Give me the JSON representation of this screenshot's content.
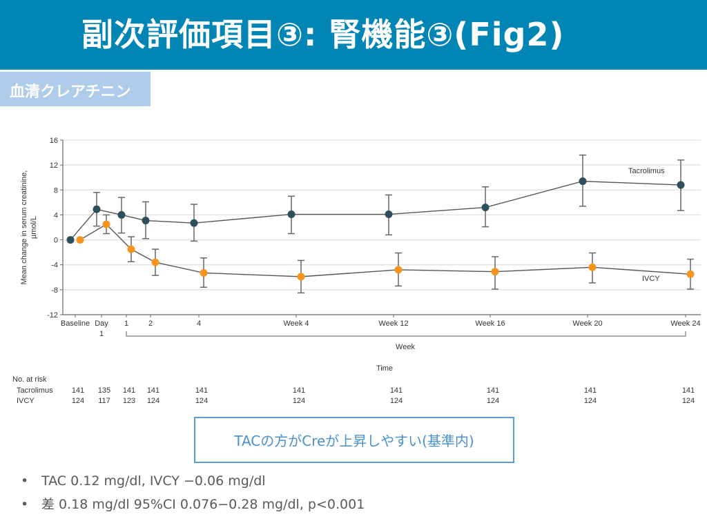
{
  "slide": {
    "title": "副次評価項目③: 腎機能③(Fig2)",
    "subtag": "血清クレアチニン",
    "callout": "TACの方がCreが上昇しやすい(基準内)",
    "bullets": [
      {
        "marker": "•",
        "text": "TAC 0.12 mg/dl, IVCY −0.06 mg/dl"
      },
      {
        "marker": "•",
        "text": "差 0.18 mg/dl 95%CI 0.076−0.28 mg/dl, p<0.001"
      }
    ],
    "colors": {
      "title_bar": "#0085b5",
      "subtag": "#aecbe9",
      "callout_border": "#5b9bd5",
      "callout_text": "#4a90d0"
    }
  },
  "chart_data": {
    "type": "line",
    "title": "",
    "ylabel": "Mean change in serum creatinine, µmol/L",
    "xlabel": "Time",
    "x_group_label": "Week",
    "ylim": [
      -12,
      16
    ],
    "yticks": [
      16,
      12,
      8,
      4,
      0,
      -4,
      -8,
      -12
    ],
    "grid": true,
    "categories": [
      "Baseline",
      "Day 1",
      "1",
      "2",
      "4",
      "Week 4",
      "Week 12",
      "Week 16",
      "Week 20",
      "Week 24"
    ],
    "series": [
      {
        "name": "Tacrolimus",
        "color": "#2d4f5c",
        "values": [
          0,
          4.9,
          4.0,
          3.1,
          2.7,
          4.1,
          4.1,
          5.2,
          9.4,
          8.8
        ],
        "ci_low": [
          0,
          2.2,
          1.1,
          0.2,
          -0.2,
          1.0,
          0.8,
          2.1,
          5.4,
          4.7
        ],
        "ci_high": [
          0,
          7.6,
          6.8,
          6.1,
          5.7,
          7.0,
          7.2,
          8.5,
          13.6,
          12.8
        ],
        "label": "Tacrolimus"
      },
      {
        "name": "IVCY",
        "color": "#f7941d",
        "values": [
          0,
          2.5,
          -1.5,
          -3.6,
          -5.3,
          -5.9,
          -4.8,
          -5.1,
          -4.4,
          -5.5
        ],
        "ci_low": [
          0,
          1.0,
          -3.5,
          -5.7,
          -7.6,
          -8.5,
          -7.4,
          -7.9,
          -6.9,
          -7.9
        ],
        "ci_high": [
          0,
          4.0,
          0.5,
          -1.5,
          -2.9,
          -3.3,
          -2.1,
          -2.7,
          -2.1,
          -3.1
        ],
        "label": "IVCY"
      }
    ],
    "at_risk": {
      "title": "No. at risk",
      "rows": [
        {
          "name": "Tacrolimus",
          "values": [
            141,
            135,
            141,
            141,
            141,
            141,
            141,
            141,
            141,
            141
          ]
        },
        {
          "name": "IVCY",
          "values": [
            124,
            117,
            123,
            124,
            124,
            124,
            124,
            124,
            124,
            124
          ]
        }
      ]
    }
  }
}
